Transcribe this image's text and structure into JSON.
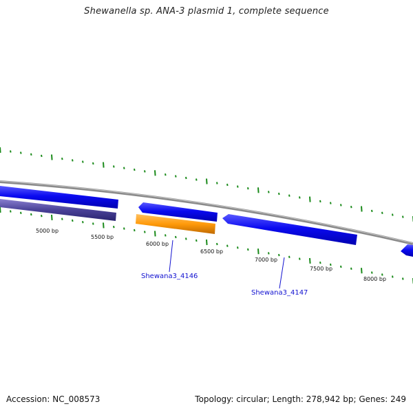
{
  "title": "Shewanella sp. ANA-3 plasmid 1, complete sequence",
  "footer": {
    "accession": "Accession: NC_008573",
    "summary": "Topology: circular; Length: 278,942 bp; Genes: 249"
  },
  "ruler_labels": [
    "5000 bp",
    "5500 bp",
    "6000 bp",
    "6500 bp",
    "7000 bp",
    "7500 bp",
    "8000 bp"
  ],
  "gene_labels": [
    "Shewana3_4146",
    "Shewana3_4147"
  ],
  "colors": {
    "forward_gene": "#0a0af0",
    "reverse_gene_dark": "#3b3490",
    "highlight_gene": "#ff9a0a",
    "backbone": "#8a8a8a",
    "ticks": "#1a8a1a",
    "label_link": "#1010d0"
  }
}
